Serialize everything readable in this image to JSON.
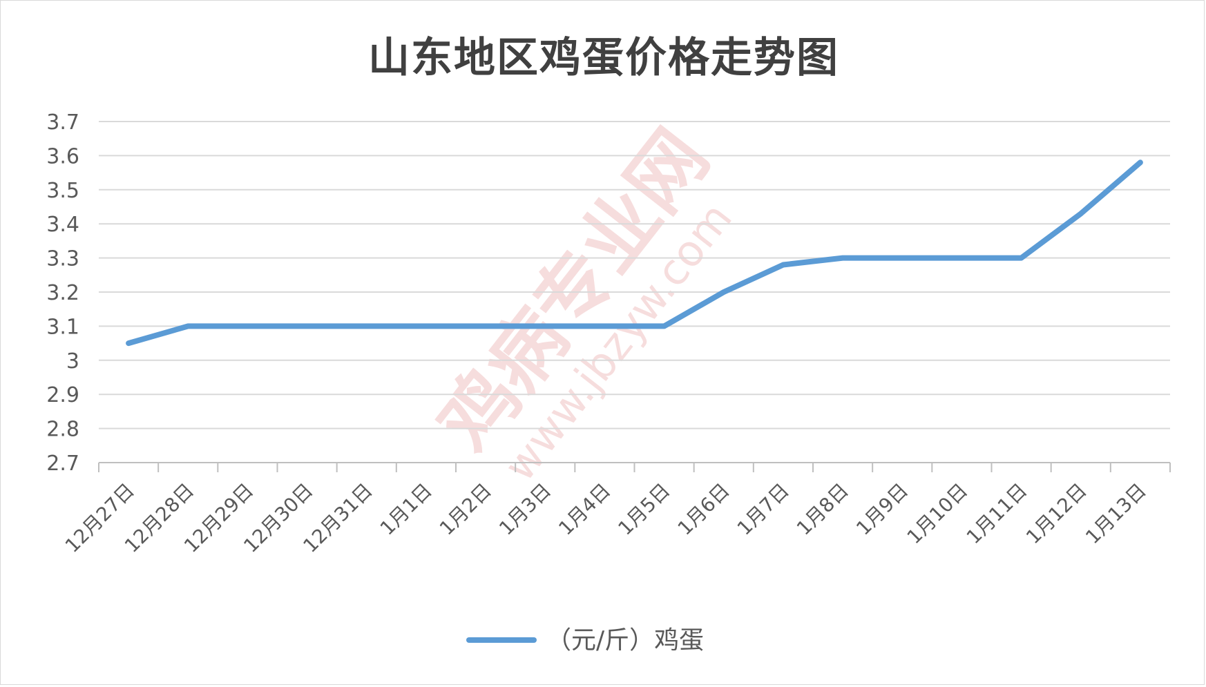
{
  "chart_data": {
    "type": "line",
    "title": "山东地区鸡蛋价格走势图",
    "xlabel": "",
    "ylabel": "",
    "categories": [
      "12月27日",
      "12月28日",
      "12月29日",
      "12月30日",
      "12月31日",
      "1月1日",
      "1月2日",
      "1月3日",
      "1月4日",
      "1月5日",
      "1月6日",
      "1月7日",
      "1月8日",
      "1月9日",
      "1月10日",
      "1月11日",
      "1月12日",
      "1月13日"
    ],
    "series": [
      {
        "name": "（元/斤）鸡蛋",
        "color": "#5b9bd5",
        "values": [
          3.05,
          3.1,
          3.1,
          3.1,
          3.1,
          3.1,
          3.1,
          3.1,
          3.1,
          3.1,
          3.2,
          3.28,
          3.3,
          3.3,
          3.3,
          3.3,
          3.43,
          3.58
        ]
      }
    ],
    "ylim": [
      2.7,
      3.7
    ],
    "yticks": [
      "2.7",
      "2.8",
      "2.9",
      "3",
      "3.1",
      "3.2",
      "3.3",
      "3.4",
      "3.5",
      "3.6",
      "3.7"
    ],
    "grid": true,
    "legend": "bottom"
  },
  "watermark": {
    "text": "鸡病专业网",
    "url": "www.jbzyw.com"
  }
}
